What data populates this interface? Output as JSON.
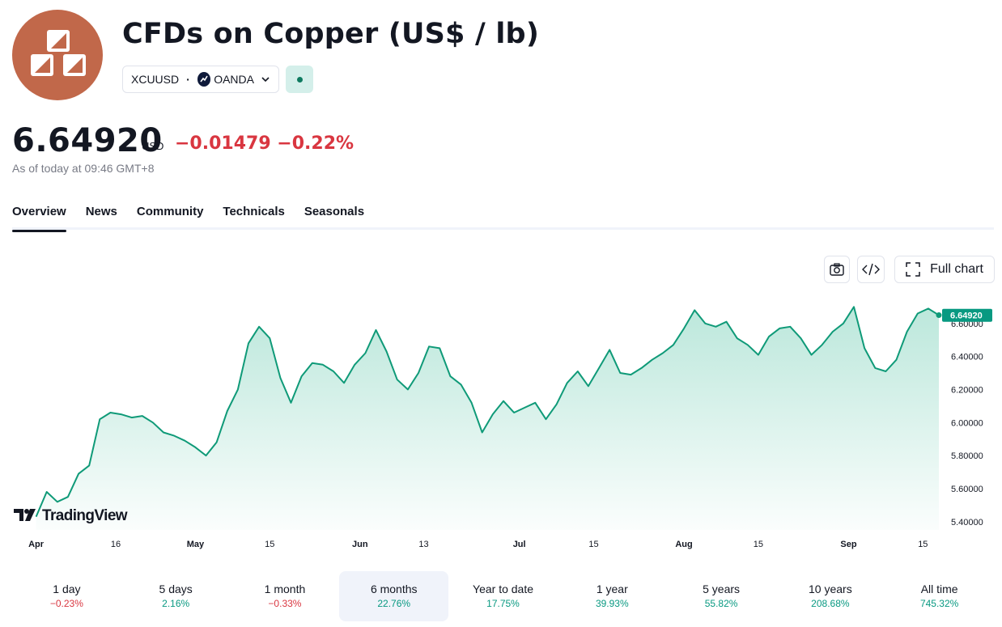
{
  "header": {
    "title": "CFDs on Copper (US$ / lb)",
    "ticker": "XCUUSD",
    "separator": "·",
    "broker": "OANDA"
  },
  "quote": {
    "price": "6.64920",
    "currency": "USD",
    "change": "−0.01479 −0.22%",
    "as_of": "As of today at 09:46 GMT+8"
  },
  "tabs": [
    "Overview",
    "News",
    "Community",
    "Technicals",
    "Seasonals"
  ],
  "toolbar": {
    "full_chart_label": "Full chart"
  },
  "watermark": "TradingView",
  "icons": [
    "snapshot-icon",
    "embed-icon",
    "fullscreen-icon",
    "chevron-down-icon"
  ],
  "colors": {
    "accent": "#089981",
    "negative": "#d93640",
    "logo": "#c1684a",
    "line": "#0f9a78"
  },
  "chart_data": {
    "type": "area",
    "last_label": "6.64920",
    "ylim": [
      5.35,
      6.78
    ],
    "y_ticks": [
      "5.40000",
      "5.60000",
      "5.80000",
      "6.00000",
      "6.20000",
      "6.40000",
      "6.60000"
    ],
    "x_ticks": [
      "Apr",
      "16",
      "May",
      "15",
      "Jun",
      "13",
      "Jul",
      "15",
      "Aug",
      "15",
      "Sep",
      "15"
    ],
    "series": [
      {
        "points": [
          [
            "2025-04-01",
            5.43
          ],
          [
            "2025-04-03",
            5.58
          ],
          [
            "2025-04-05",
            5.52
          ],
          [
            "2025-04-07",
            5.55
          ],
          [
            "2025-04-09",
            5.69
          ],
          [
            "2025-04-11",
            5.74
          ],
          [
            "2025-04-13",
            6.02
          ],
          [
            "2025-04-15",
            6.06
          ],
          [
            "2025-04-17",
            6.05
          ],
          [
            "2025-04-19",
            6.03
          ],
          [
            "2025-04-21",
            6.04
          ],
          [
            "2025-04-23",
            6.0
          ],
          [
            "2025-04-25",
            5.94
          ],
          [
            "2025-04-27",
            5.92
          ],
          [
            "2025-04-29",
            5.89
          ],
          [
            "2025-05-01",
            5.85
          ],
          [
            "2025-05-03",
            5.8
          ],
          [
            "2025-05-05",
            5.88
          ],
          [
            "2025-05-07",
            6.07
          ],
          [
            "2025-05-09",
            6.2
          ],
          [
            "2025-05-11",
            6.48
          ],
          [
            "2025-05-13",
            6.58
          ],
          [
            "2025-05-15",
            6.51
          ],
          [
            "2025-05-17",
            6.27
          ],
          [
            "2025-05-19",
            6.12
          ],
          [
            "2025-05-21",
            6.28
          ],
          [
            "2025-05-23",
            6.36
          ],
          [
            "2025-05-25",
            6.35
          ],
          [
            "2025-05-27",
            6.31
          ],
          [
            "2025-05-29",
            6.24
          ],
          [
            "2025-05-31",
            6.35
          ],
          [
            "2025-06-02",
            6.42
          ],
          [
            "2025-06-04",
            6.56
          ],
          [
            "2025-06-06",
            6.43
          ],
          [
            "2025-06-08",
            6.26
          ],
          [
            "2025-06-10",
            6.2
          ],
          [
            "2025-06-12",
            6.3
          ],
          [
            "2025-06-14",
            6.46
          ],
          [
            "2025-06-16",
            6.45
          ],
          [
            "2025-06-18",
            6.28
          ],
          [
            "2025-06-20",
            6.23
          ],
          [
            "2025-06-22",
            6.12
          ],
          [
            "2025-06-24",
            5.94
          ],
          [
            "2025-06-26",
            6.05
          ],
          [
            "2025-06-28",
            6.13
          ],
          [
            "2025-06-30",
            6.06
          ],
          [
            "2025-07-02",
            6.09
          ],
          [
            "2025-07-04",
            6.12
          ],
          [
            "2025-07-06",
            6.02
          ],
          [
            "2025-07-08",
            6.11
          ],
          [
            "2025-07-10",
            6.24
          ],
          [
            "2025-07-12",
            6.31
          ],
          [
            "2025-07-14",
            6.22
          ],
          [
            "2025-07-16",
            6.33
          ],
          [
            "2025-07-18",
            6.44
          ],
          [
            "2025-07-20",
            6.3
          ],
          [
            "2025-07-22",
            6.29
          ],
          [
            "2025-07-24",
            6.33
          ],
          [
            "2025-07-26",
            6.38
          ],
          [
            "2025-07-28",
            6.42
          ],
          [
            "2025-07-30",
            6.47
          ],
          [
            "2025-08-01",
            6.57
          ],
          [
            "2025-08-03",
            6.68
          ],
          [
            "2025-08-05",
            6.6
          ],
          [
            "2025-08-07",
            6.58
          ],
          [
            "2025-08-09",
            6.61
          ],
          [
            "2025-08-11",
            6.51
          ],
          [
            "2025-08-13",
            6.47
          ],
          [
            "2025-08-15",
            6.41
          ],
          [
            "2025-08-17",
            6.52
          ],
          [
            "2025-08-19",
            6.57
          ],
          [
            "2025-08-21",
            6.58
          ],
          [
            "2025-08-23",
            6.51
          ],
          [
            "2025-08-25",
            6.41
          ],
          [
            "2025-08-27",
            6.47
          ],
          [
            "2025-08-29",
            6.55
          ],
          [
            "2025-08-31",
            6.6
          ],
          [
            "2025-09-02",
            6.7
          ],
          [
            "2025-09-04",
            6.45
          ],
          [
            "2025-09-06",
            6.33
          ],
          [
            "2025-09-08",
            6.31
          ],
          [
            "2025-09-10",
            6.38
          ],
          [
            "2025-09-12",
            6.55
          ],
          [
            "2025-09-14",
            6.66
          ],
          [
            "2025-09-16",
            6.69
          ],
          [
            "2025-09-18",
            6.65
          ]
        ]
      }
    ]
  },
  "periods": [
    {
      "label": "1 day",
      "value": "−0.23%",
      "dir": "neg"
    },
    {
      "label": "5 days",
      "value": "2.16%",
      "dir": "pos"
    },
    {
      "label": "1 month",
      "value": "−0.33%",
      "dir": "neg"
    },
    {
      "label": "6 months",
      "value": "22.76%",
      "dir": "pos",
      "active": true
    },
    {
      "label": "Year to date",
      "value": "17.75%",
      "dir": "pos"
    },
    {
      "label": "1 year",
      "value": "39.93%",
      "dir": "pos"
    },
    {
      "label": "5 years",
      "value": "55.82%",
      "dir": "pos"
    },
    {
      "label": "10 years",
      "value": "208.68%",
      "dir": "pos"
    },
    {
      "label": "All time",
      "value": "745.32%",
      "dir": "pos"
    }
  ]
}
